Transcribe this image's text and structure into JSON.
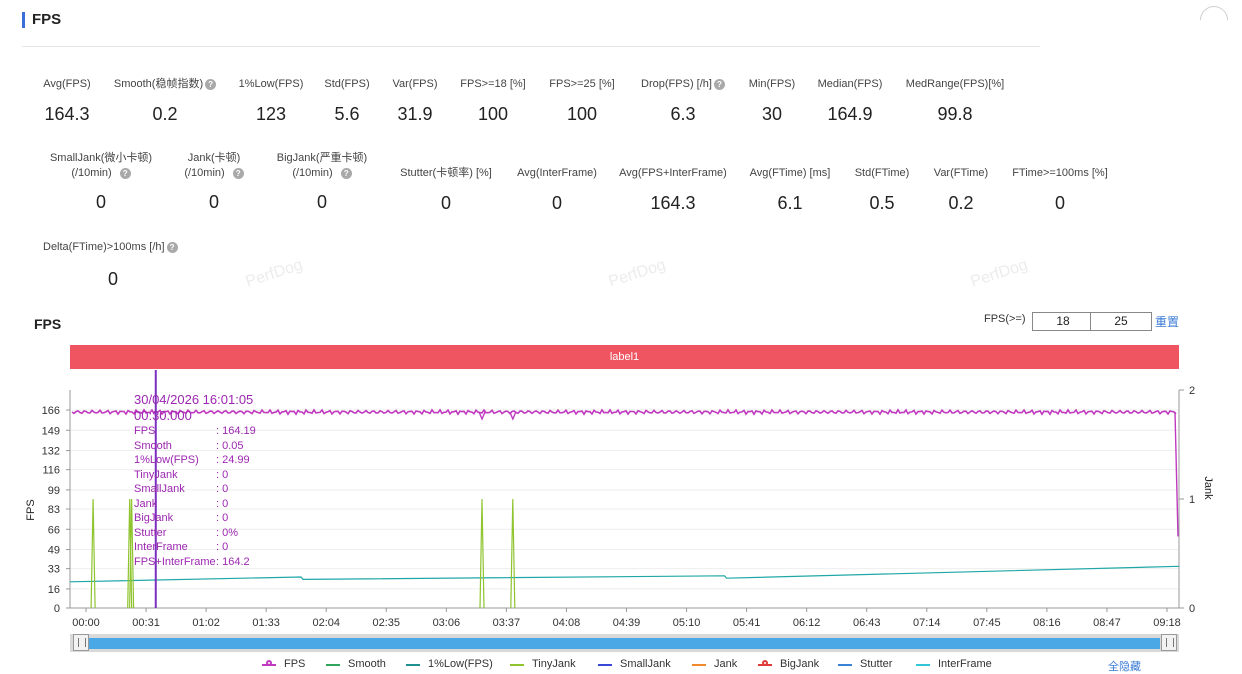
{
  "section": {
    "title": "FPS"
  },
  "stats_row1": [
    {
      "label": "Avg(FPS)",
      "value": "164.3",
      "help": false
    },
    {
      "label": "Smooth(稳帧指数)",
      "value": "0.2",
      "help": true
    },
    {
      "label": "1%Low(FPS)",
      "value": "123",
      "help": false
    },
    {
      "label": "Std(FPS)",
      "value": "5.6",
      "help": false
    },
    {
      "label": "Var(FPS)",
      "value": "31.9",
      "help": false
    },
    {
      "label": "FPS>=18 [%]",
      "value": "100",
      "help": false
    },
    {
      "label": "FPS>=25 [%]",
      "value": "100",
      "help": false
    },
    {
      "label": "Drop(FPS) [/h]",
      "value": "6.3",
      "help": true
    },
    {
      "label": "Min(FPS)",
      "value": "30",
      "help": false
    },
    {
      "label": "Median(FPS)",
      "value": "164.9",
      "help": false
    },
    {
      "label": "MedRange(FPS)[%]",
      "value": "99.8",
      "help": false
    }
  ],
  "stats_row2": [
    {
      "label": "SmallJank(微小卡顿)",
      "sub": "(/10min)",
      "value": "0",
      "help": true
    },
    {
      "label": "Jank(卡顿)",
      "sub": "(/10min)",
      "value": "0",
      "help": true
    },
    {
      "label": "BigJank(严重卡顿)",
      "sub": "(/10min)",
      "value": "0",
      "help": true
    },
    {
      "label": "Stutter(卡顿率) [%]",
      "value": "0",
      "help": false
    },
    {
      "label": "Avg(InterFrame)",
      "value": "0",
      "help": false
    },
    {
      "label": "Avg(FPS+InterFrame)",
      "value": "164.3",
      "help": false
    },
    {
      "label": "Avg(FTime) [ms]",
      "value": "6.1",
      "help": false
    },
    {
      "label": "Std(FTime)",
      "value": "0.5",
      "help": false
    },
    {
      "label": "Var(FTime)",
      "value": "0.2",
      "help": false
    },
    {
      "label": "FTime>=100ms [%]",
      "value": "0",
      "help": false
    }
  ],
  "stats_row3": [
    {
      "label": "Delta(FTime)>100ms [/h]",
      "value": "0",
      "help": true
    }
  ],
  "watermark": "PerfDog",
  "chart_section": {
    "title": "FPS",
    "filter_label": "FPS(>=)",
    "threshold1": "18",
    "threshold2": "25",
    "reset_label": "重置",
    "band_label": "label1"
  },
  "tooltip": {
    "datetime": "30/04/2026 16:01:05",
    "elapsed": "00:30.000",
    "rows": [
      {
        "k": "FPS",
        "v": ": 164.19"
      },
      {
        "k": "Smooth",
        "v": ": 0.05"
      },
      {
        "k": "1%Low(FPS)",
        "v": ": 24.99"
      },
      {
        "k": "TinyJank",
        "v": ": 0"
      },
      {
        "k": "SmallJank",
        "v": ": 0"
      },
      {
        "k": "Jank",
        "v": ": 0"
      },
      {
        "k": "BigJank",
        "v": ": 0"
      },
      {
        "k": "Stutter",
        "v": ": 0%"
      },
      {
        "k": "InterFrame",
        "v": ": 0"
      },
      {
        "k": "FPS+InterFrame",
        "v": ": 164.2"
      }
    ]
  },
  "chart_data": {
    "type": "line",
    "ylabel": "FPS",
    "y2label": "Jank",
    "ylim": [
      0,
      166
    ],
    "y2lim": [
      0,
      2
    ],
    "yticks": [
      0,
      16,
      33,
      49,
      66,
      83,
      99,
      116,
      132,
      149,
      166
    ],
    "y2ticks": [
      0,
      1,
      2
    ],
    "xlim_seconds": [
      0,
      576
    ],
    "xtick_labels": [
      "00:00",
      "00:31",
      "01:02",
      "01:33",
      "02:04",
      "02:35",
      "03:06",
      "03:37",
      "04:08",
      "04:39",
      "05:10",
      "05:41",
      "06:12",
      "06:43",
      "07:14",
      "07:45",
      "08:16",
      "08:47",
      "09:18"
    ],
    "cursor_seconds": 30,
    "grid": "horizontal",
    "series": [
      {
        "name": "FPS",
        "color": "#c03ac0",
        "approx_value": 164.3
      },
      {
        "name": "1%Low(FPS)",
        "color": "#1fa7a7",
        "x_seconds": [
          0,
          120,
          121,
          340,
          341,
          576
        ],
        "values": [
          22,
          26,
          24,
          27,
          25,
          35
        ]
      },
      {
        "name": "TinyJank",
        "color": "#8fc42e",
        "spikes_seconds": [
          12,
          31,
          32,
          214,
          230
        ],
        "spike_value": 1
      }
    ]
  },
  "legend": [
    {
      "name": "FPS",
      "color": "#c03ac0",
      "dot": true
    },
    {
      "name": "Smooth",
      "color": "#2fa45a",
      "dot": false
    },
    {
      "name": "1%Low(FPS)",
      "color": "#1f8f8f",
      "dot": false
    },
    {
      "name": "TinyJank",
      "color": "#8fc42e",
      "dot": false
    },
    {
      "name": "SmallJank",
      "color": "#3b47d6",
      "dot": false
    },
    {
      "name": "Jank",
      "color": "#f08a2a",
      "dot": false
    },
    {
      "name": "BigJank",
      "color": "#e03b3b",
      "dot": true
    },
    {
      "name": "Stutter",
      "color": "#3a82d6",
      "dot": false
    },
    {
      "name": "InterFrame",
      "color": "#33c6d9",
      "dot": false
    }
  ],
  "hide_all_label": "全隐藏"
}
